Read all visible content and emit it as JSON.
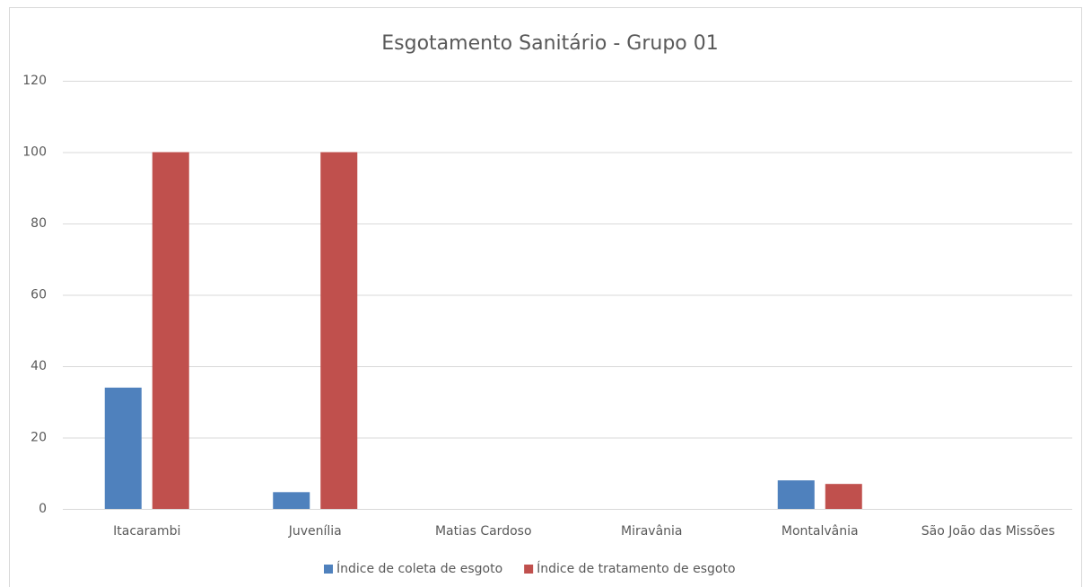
{
  "chart_data": {
    "type": "bar",
    "title": "Esgotamento Sanitário - Grupo 01",
    "categories": [
      "Itacarambi",
      "Juvenília",
      "Matias Cardoso",
      "Miravânia",
      "Montalvânia",
      "São João das Missões"
    ],
    "series": [
      {
        "name": "Índice de coleta de esgoto",
        "color": "#4f81bd",
        "values": [
          34,
          4.7,
          0,
          0,
          8,
          0
        ]
      },
      {
        "name": "Índice de tratamento de esgoto",
        "color": "#c0504d",
        "values": [
          100,
          100,
          0,
          0,
          7,
          0
        ]
      }
    ],
    "ylim": [
      0,
      120
    ],
    "yticks": [
      0,
      20,
      40,
      60,
      80,
      100,
      120
    ],
    "grid": true,
    "legend": "bottom"
  }
}
